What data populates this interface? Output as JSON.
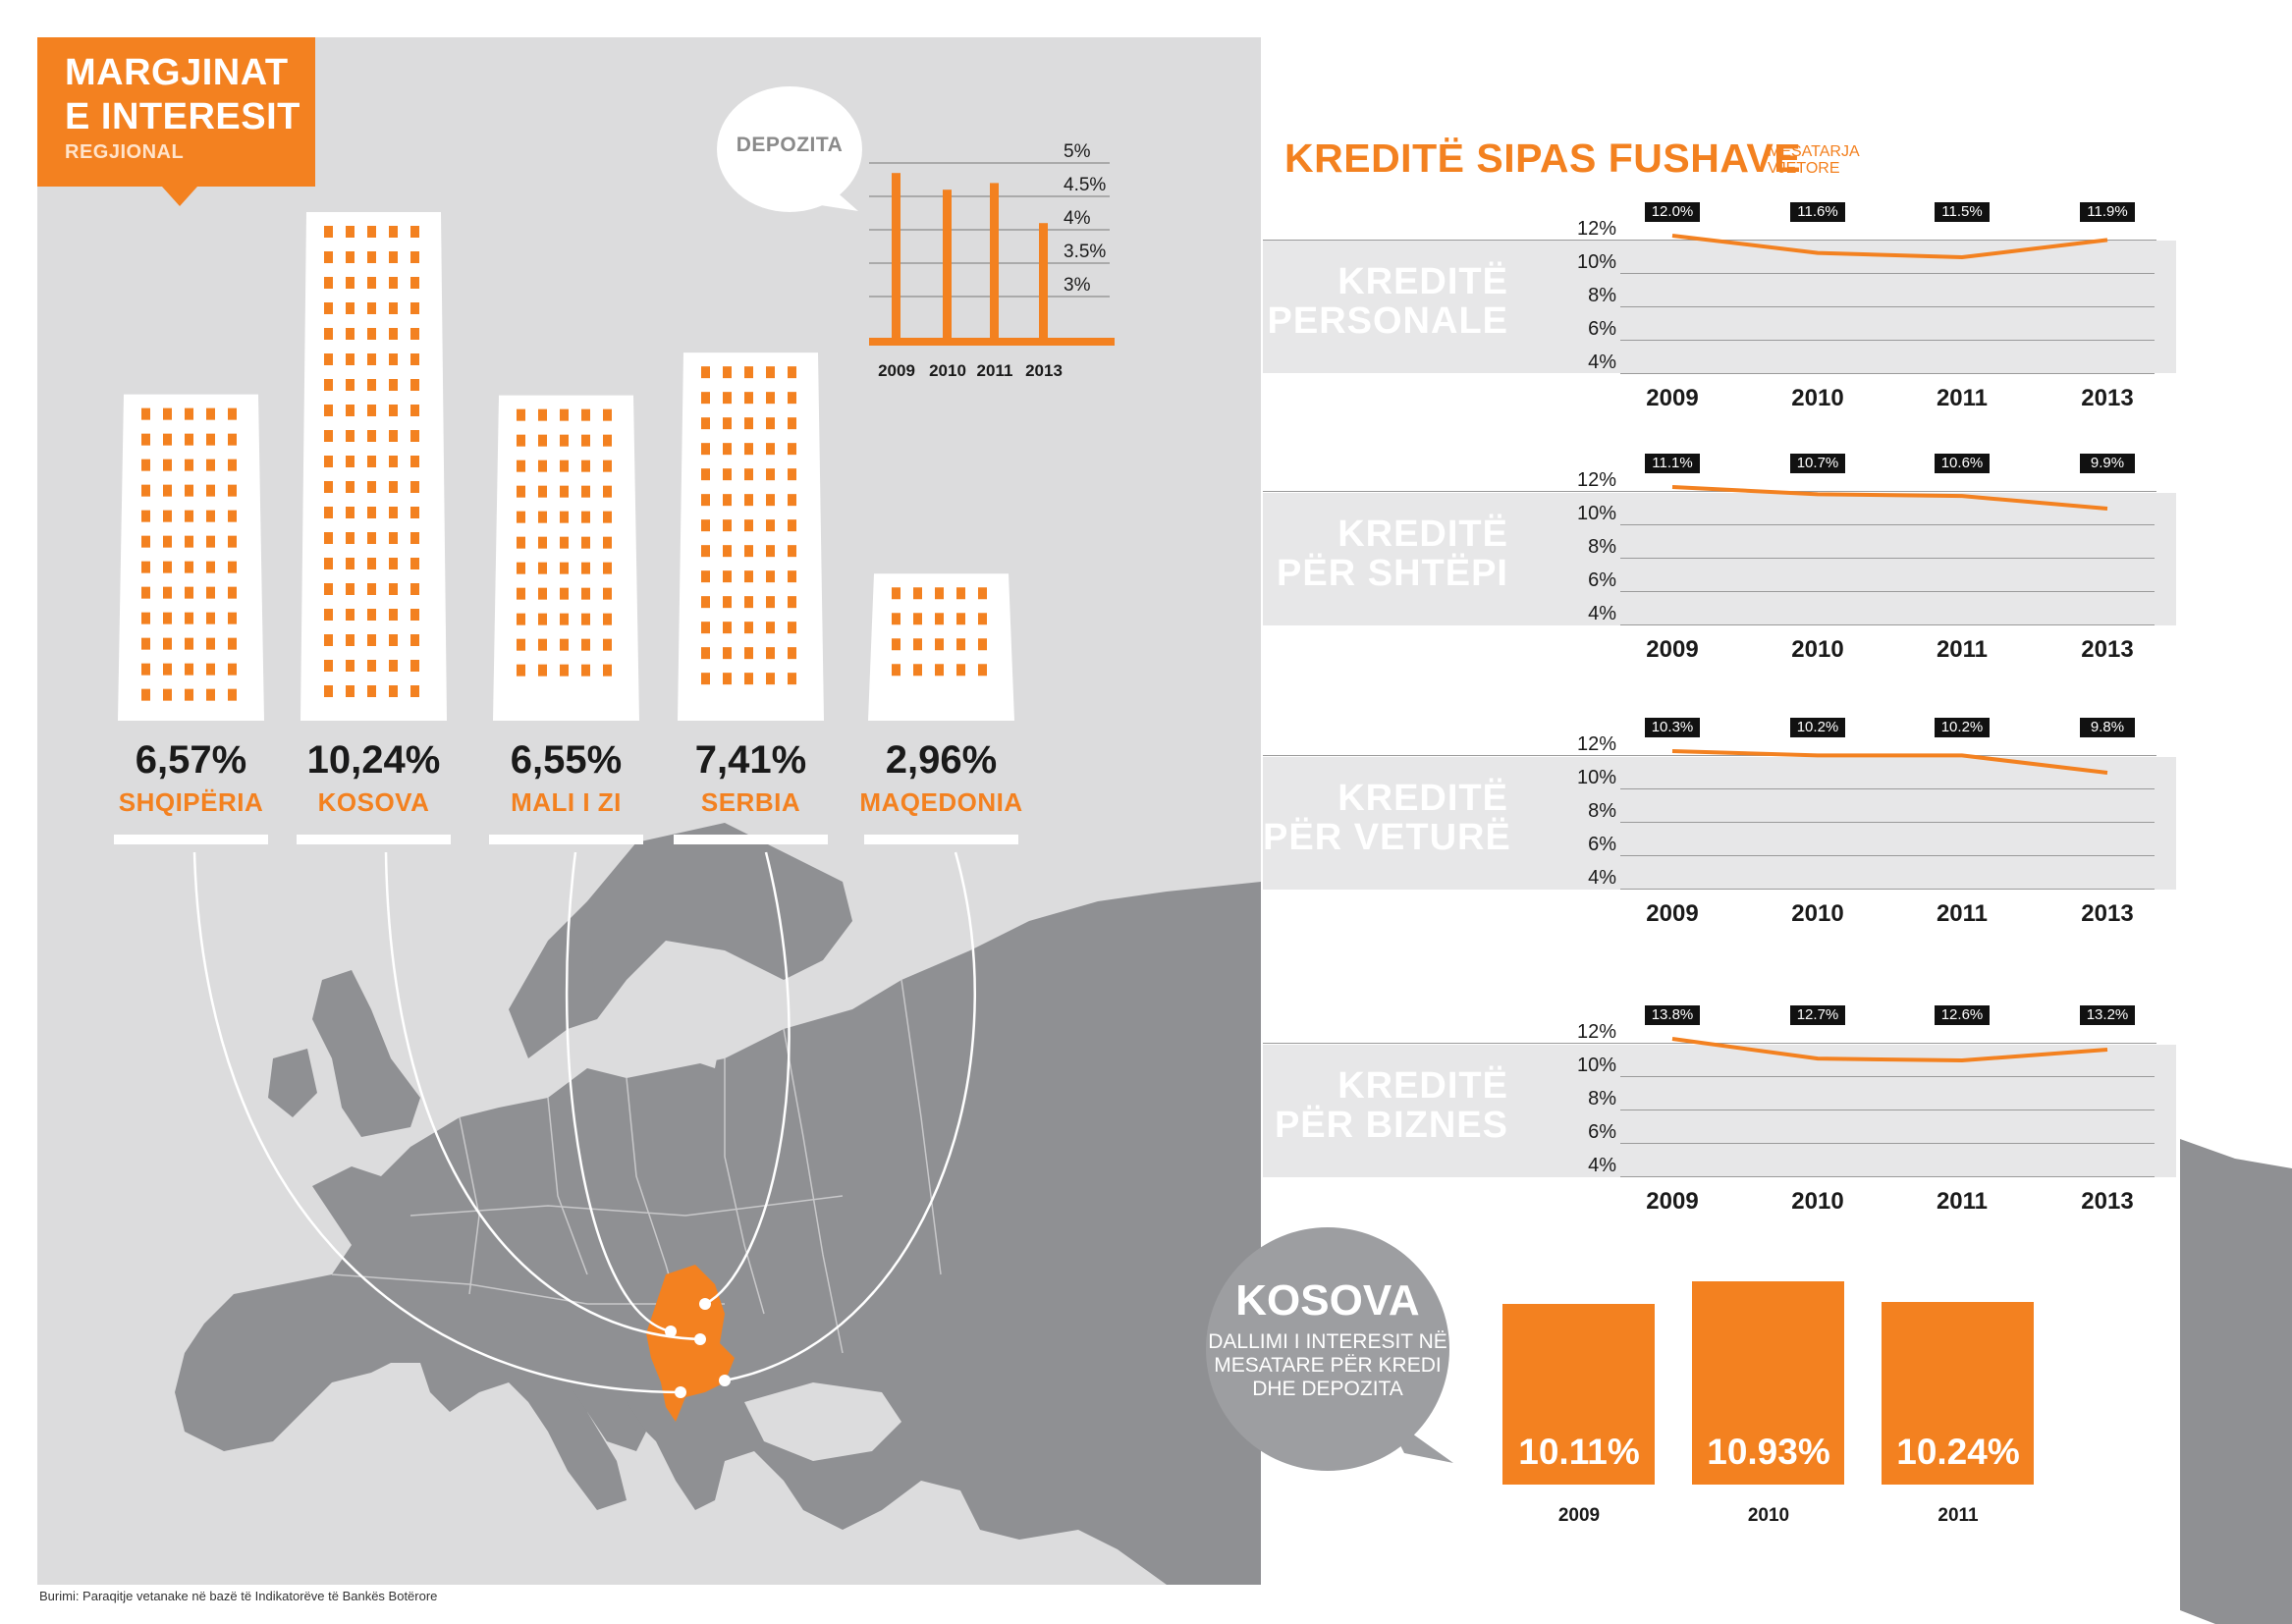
{
  "title": {
    "main": "MARGJINAT\nE INTERESIT",
    "sub": "REGJIONAL"
  },
  "colors": {
    "accent": "#f38120",
    "panel": "#dcdcdd",
    "map": "#8f9093",
    "band": "#e7e7e8"
  },
  "buildings": [
    {
      "pct": "6,57%",
      "name": "SHQIPËRIA"
    },
    {
      "pct": "10,24%",
      "name": "KOSOVA"
    },
    {
      "pct": "6,55%",
      "name": "MALI I ZI"
    },
    {
      "pct": "7,41%",
      "name": "SERBIA"
    },
    {
      "pct": "2,96%",
      "name": "MAQEDONIA"
    }
  ],
  "deposits": {
    "label": "DEPOZITA",
    "ticks": [
      "5%",
      "4.5%",
      "4%",
      "3.5%",
      "3%"
    ],
    "years": [
      "2009",
      "2010",
      "2011",
      "2013"
    ]
  },
  "section": {
    "title": "KREDITË SIPAS FUSHAVE",
    "subtitle": "MESATARJA VJETORE"
  },
  "loan_charts": {
    "y_ticks": [
      "12%",
      "10%",
      "8%",
      "6%",
      "4%"
    ],
    "years": [
      "2009",
      "2010",
      "2011",
      "2013"
    ],
    "items": [
      {
        "label": "KREDITË\nPERSONALE",
        "value_labels": [
          "12.0%",
          "11.6%",
          "11.5%",
          "11.9%"
        ]
      },
      {
        "label": "KREDITË\nPËR SHTËPI",
        "value_labels": [
          "11.1%",
          "10.7%",
          "10.6%",
          "9.9%"
        ]
      },
      {
        "label": "KREDITË\nPËR VETURË",
        "value_labels": [
          "10.3%",
          "10.2%",
          "10.2%",
          "9.8%"
        ]
      },
      {
        "label": "KREDITË\nPËR BIZNES",
        "value_labels": [
          "13.8%",
          "12.7%",
          "12.6%",
          "13.2%"
        ]
      }
    ]
  },
  "kosova": {
    "title": "KOSOVA",
    "subtitle": "DALLIMI I INTERESIT NË MESATARE PËR KREDI DHE DEPOZITA",
    "bars": [
      {
        "year": "2009",
        "label": "10.11%"
      },
      {
        "year": "2010",
        "label": "10.93%"
      },
      {
        "year": "2011",
        "label": "10.24%"
      }
    ]
  },
  "source": "Burimi: Paraqitje vetanake në bazë të Indikatorëve të Bankës Botërore",
  "chart_data": [
    {
      "type": "bar",
      "title": "MARGJINAT E INTERESIT REGJIONAL",
      "categories": [
        "SHQIPËRIA",
        "KOSOVA",
        "MALI I ZI",
        "SERBIA",
        "MAQEDONIA"
      ],
      "values": [
        6.57,
        10.24,
        6.55,
        7.41,
        2.96
      ]
    },
    {
      "type": "bar",
      "title": "DEPOZITA",
      "categories": [
        "2009",
        "2010",
        "2011",
        "2013"
      ],
      "values": [
        4.85,
        4.6,
        4.7,
        4.1
      ],
      "ylim": [
        2.5,
        5
      ]
    },
    {
      "type": "line",
      "title": "KREDITË SIPAS FUSHAVE",
      "x": [
        "2009",
        "2010",
        "2011",
        "2013"
      ],
      "series": [
        {
          "name": "KREDITË PERSONALE",
          "values": [
            12.0,
            11.6,
            11.5,
            11.9
          ]
        },
        {
          "name": "KREDITË PËR SHTËPI",
          "values": [
            11.1,
            10.7,
            10.6,
            9.9
          ]
        },
        {
          "name": "KREDITË PËR VETURË",
          "values": [
            10.3,
            10.2,
            10.2,
            9.8
          ]
        },
        {
          "name": "KREDITË PËR BIZNES",
          "values": [
            13.8,
            12.7,
            12.6,
            13.2
          ]
        }
      ]
    },
    {
      "type": "bar",
      "title": "KOSOVA",
      "categories": [
        "2009",
        "2010",
        "2011"
      ],
      "values": [
        10.11,
        10.93,
        10.24
      ]
    }
  ]
}
